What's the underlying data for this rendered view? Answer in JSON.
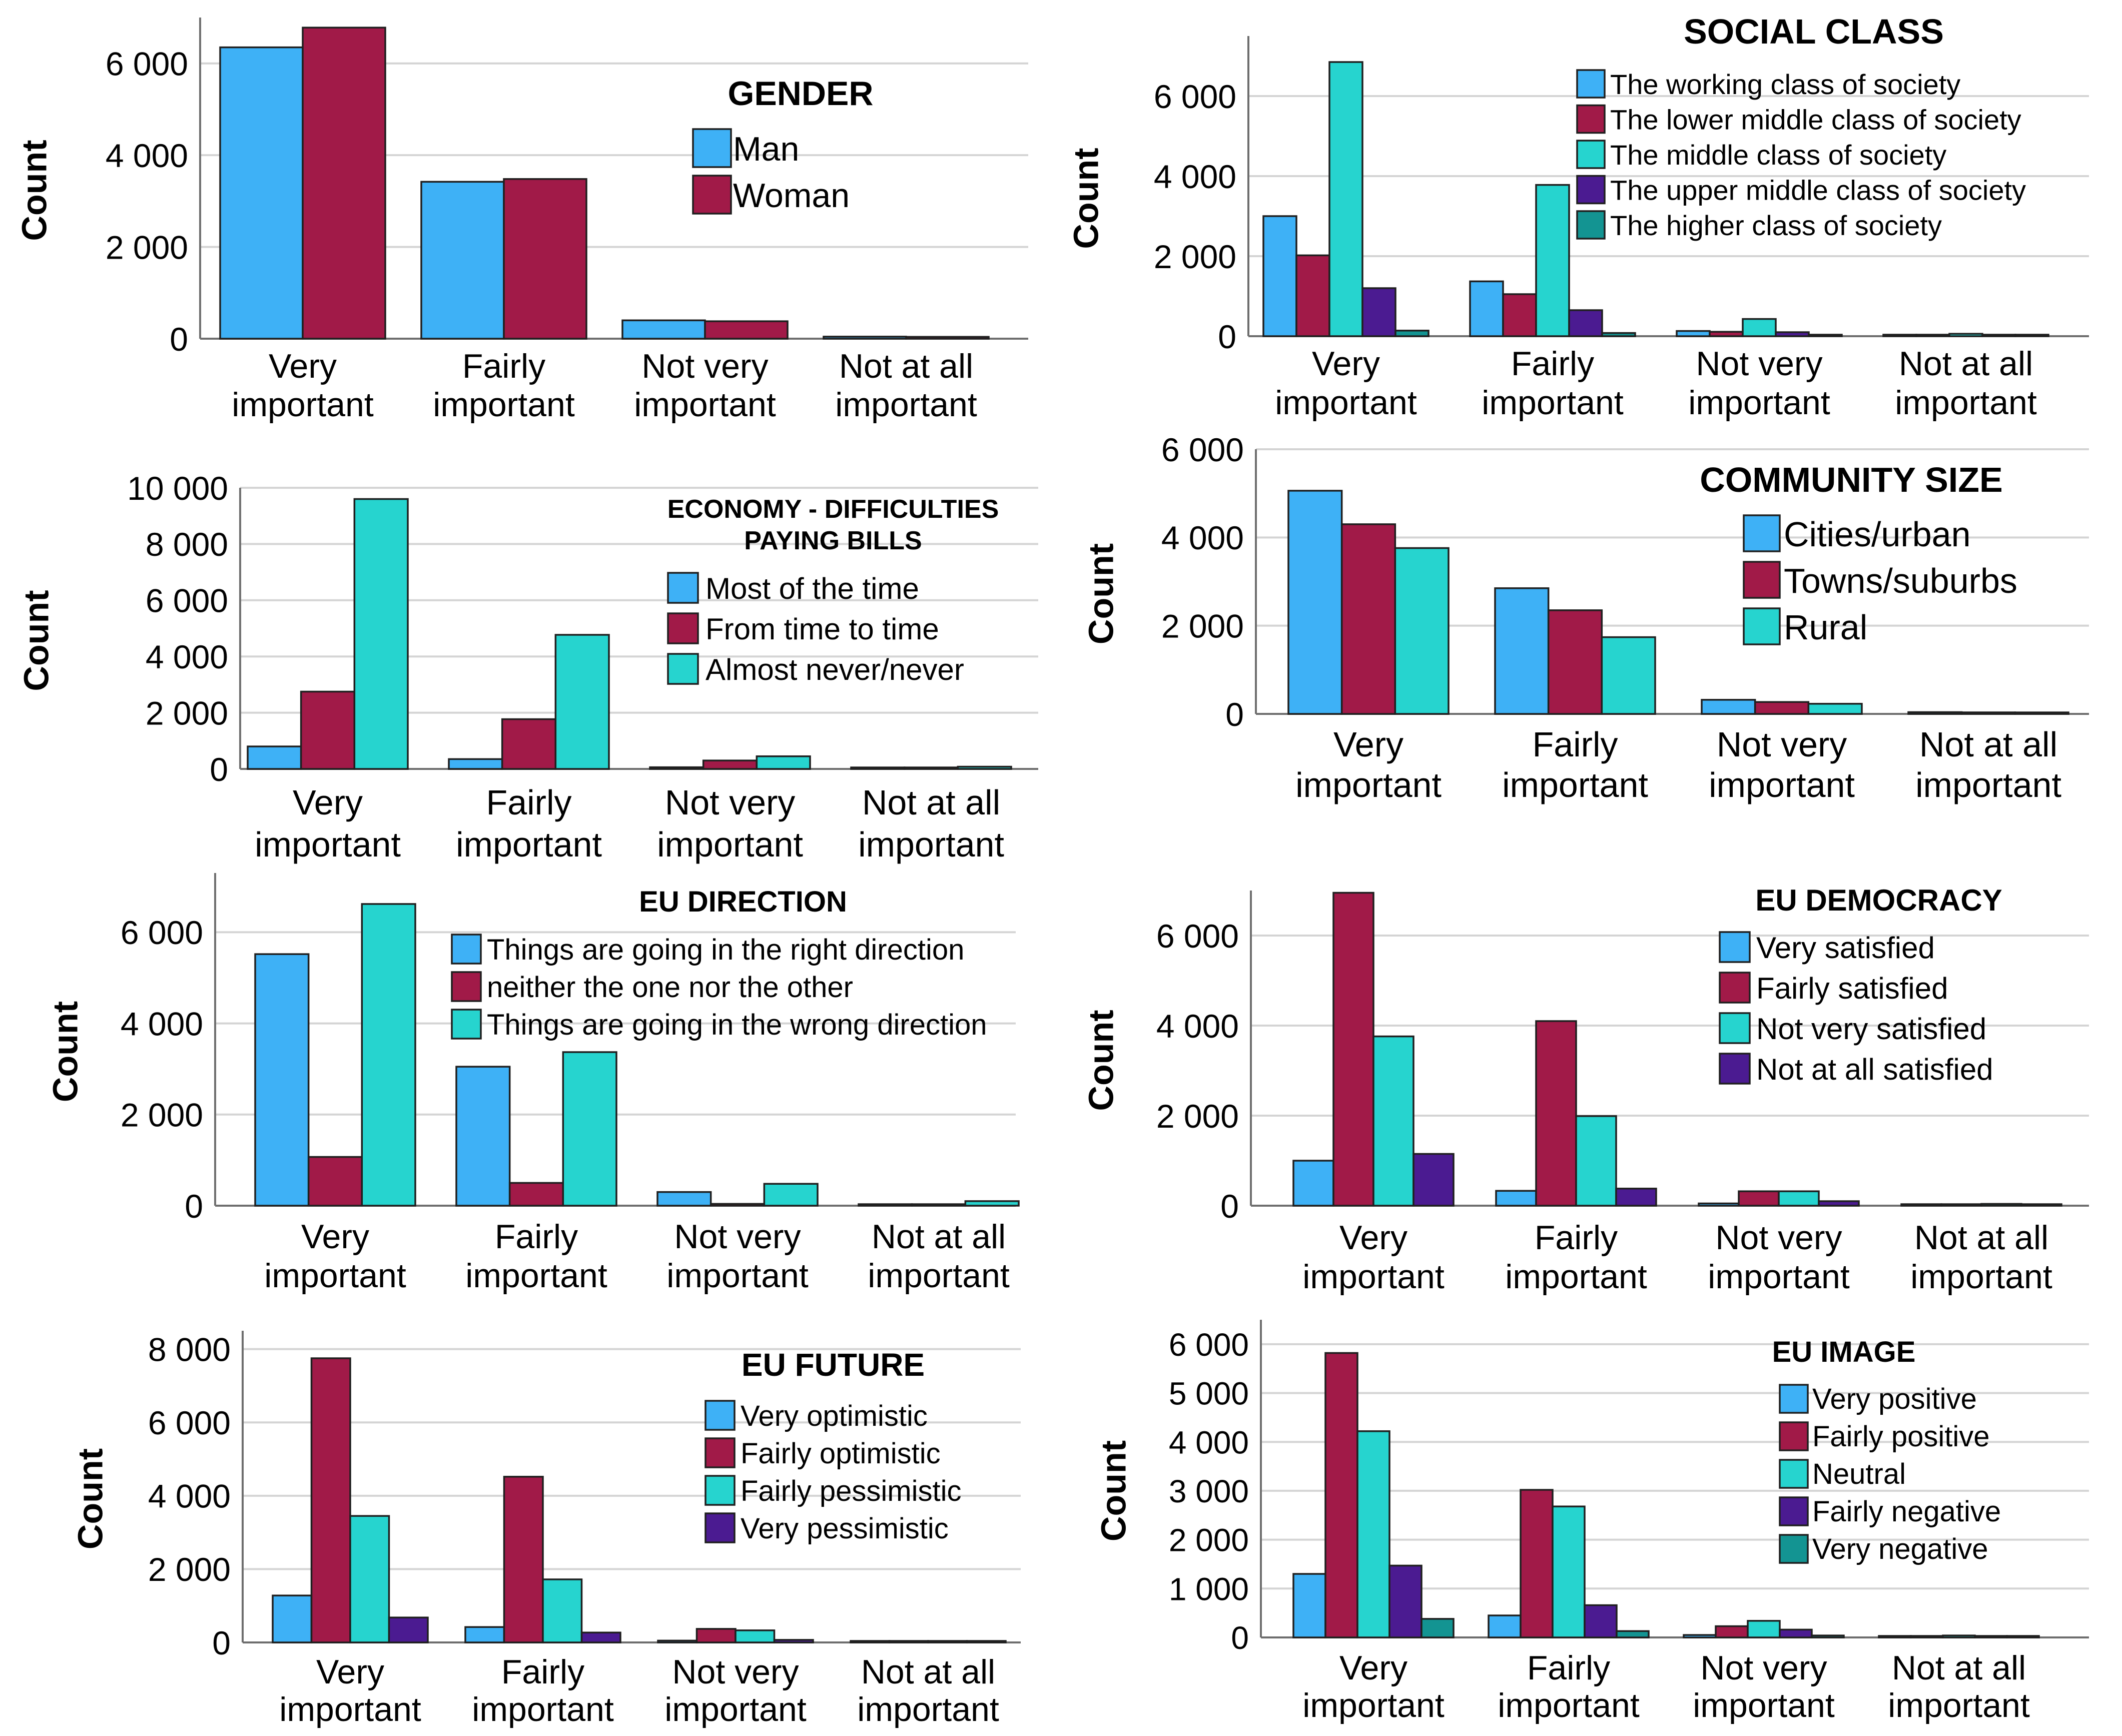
{
  "chart_data": [
    {
      "type": "bar",
      "title": "GENDER",
      "ylabel": "Count",
      "xlabel": "",
      "ylim": [
        0,
        7000
      ],
      "yticks": [
        0,
        2000,
        4000,
        6000
      ],
      "ytick_labels": [
        "0",
        "2 000",
        "4 000",
        "6 000"
      ],
      "categories": [
        "Very important",
        "Fairly important",
        "Not very important",
        "Not at all important"
      ],
      "category_lines": [
        [
          "Very",
          "important"
        ],
        [
          "Fairly",
          "important"
        ],
        [
          "Not very",
          "important"
        ],
        [
          "Not at all",
          "important"
        ]
      ],
      "series": [
        {
          "name": "Man",
          "color": "#3eb1f6",
          "values": [
            6350,
            3420,
            400,
            45
          ]
        },
        {
          "name": "Woman",
          "color": "#a11a48",
          "values": [
            6780,
            3480,
            380,
            40
          ]
        }
      ],
      "legend": "top-right"
    },
    {
      "type": "bar",
      "title": "SOCIAL CLASS",
      "ylabel": "Count",
      "xlabel": "",
      "ylim": [
        0,
        7500
      ],
      "yticks": [
        0,
        2000,
        4000,
        6000
      ],
      "ytick_labels": [
        "0",
        "2 000",
        "4 000",
        "6 000"
      ],
      "categories": [
        "Very important",
        "Fairly important",
        "Not very important",
        "Not at all important"
      ],
      "category_lines": [
        [
          "Very",
          "important"
        ],
        [
          "Fairly",
          "important"
        ],
        [
          "Not very",
          "important"
        ],
        [
          "Not at all",
          "important"
        ]
      ],
      "series": [
        {
          "name": "The working class of society",
          "color": "#3eb1f6",
          "values": [
            3000,
            1370,
            130,
            25
          ]
        },
        {
          "name": "The lower middle class of society",
          "color": "#a11a48",
          "values": [
            2020,
            1050,
            110,
            20
          ]
        },
        {
          "name": "The middle class of society",
          "color": "#26d4cf",
          "values": [
            6850,
            3780,
            430,
            60
          ]
        },
        {
          "name": "The upper middle class of society",
          "color": "#4b1b91",
          "values": [
            1200,
            650,
            100,
            15
          ]
        },
        {
          "name": "The higher class of society",
          "color": "#139492",
          "values": [
            140,
            80,
            20,
            5
          ]
        }
      ],
      "legend": "top-right"
    },
    {
      "type": "bar",
      "title": "ECONOMY - DIFFICULTIES PAYING BILLS",
      "title_lines": [
        "ECONOMY - DIFFICULTIES",
        "PAYING BILLS"
      ],
      "ylabel": "Count",
      "xlabel": "",
      "ylim": [
        0,
        10000
      ],
      "yticks": [
        0,
        2000,
        4000,
        6000,
        8000,
        10000
      ],
      "ytick_labels": [
        "0",
        "2 000",
        "4 000",
        "6 000",
        "8 000",
        "10 000"
      ],
      "categories": [
        "Very important",
        "Fairly important",
        "Not very important",
        "Not at all important"
      ],
      "category_lines": [
        [
          "Very",
          "important"
        ],
        [
          "Fairly",
          "important"
        ],
        [
          "Not very",
          "important"
        ],
        [
          "Not at all",
          "important"
        ]
      ],
      "series": [
        {
          "name": "Most of the time",
          "color": "#3eb1f6",
          "values": [
            800,
            350,
            60,
            15
          ]
        },
        {
          "name": "From time to time",
          "color": "#a11a48",
          "values": [
            2750,
            1770,
            300,
            40
          ]
        },
        {
          "name": "Almost never/never",
          "color": "#26d4cf",
          "values": [
            9600,
            4770,
            450,
            80
          ]
        }
      ],
      "legend": "top-right"
    },
    {
      "type": "bar",
      "title": "COMMUNITY SIZE",
      "ylabel": "Count",
      "xlabel": "",
      "ylim": [
        0,
        6000
      ],
      "yticks": [
        0,
        2000,
        4000,
        6000
      ],
      "ytick_labels": [
        "0",
        "2 000",
        "4 000",
        "6 000"
      ],
      "categories": [
        "Very important",
        "Fairly important",
        "Not very important",
        "Not at all important"
      ],
      "category_lines": [
        [
          "Very",
          "important"
        ],
        [
          "Fairly",
          "important"
        ],
        [
          "Not very",
          "important"
        ],
        [
          "Not at all",
          "important"
        ]
      ],
      "series": [
        {
          "name": "Cities/urban",
          "color": "#3eb1f6",
          "values": [
            5060,
            2850,
            320,
            40
          ]
        },
        {
          "name": "Towns/suburbs",
          "color": "#a11a48",
          "values": [
            4300,
            2350,
            270,
            35
          ]
        },
        {
          "name": "Rural",
          "color": "#26d4cf",
          "values": [
            3760,
            1740,
            230,
            30
          ]
        }
      ],
      "legend": "top-right"
    },
    {
      "type": "bar",
      "title": "EU DIRECTION",
      "ylabel": "Count",
      "xlabel": "",
      "ylim": [
        0,
        7300
      ],
      "yticks": [
        0,
        2000,
        4000,
        6000
      ],
      "ytick_labels": [
        "0",
        "2 000",
        "4 000",
        "6 000"
      ],
      "categories": [
        "Very important",
        "Fairly important",
        "Not very important",
        "Not at all important"
      ],
      "category_lines": [
        [
          "Very",
          "important"
        ],
        [
          "Fairly",
          "important"
        ],
        [
          "Not very",
          "important"
        ],
        [
          "Not at all",
          "important"
        ]
      ],
      "series": [
        {
          "name": "Things are going in the right direction",
          "color": "#3eb1f6",
          "values": [
            5520,
            3050,
            300,
            30
          ]
        },
        {
          "name": "neither the one nor the other",
          "color": "#a11a48",
          "values": [
            1070,
            500,
            40,
            10
          ]
        },
        {
          "name": "Things are going in the wrong direction",
          "color": "#26d4cf",
          "values": [
            6620,
            3370,
            480,
            100
          ]
        }
      ],
      "legend": "top-right"
    },
    {
      "type": "bar",
      "title": "EU DEMOCRACY",
      "ylabel": "Count",
      "xlabel": "",
      "ylim": [
        0,
        7000
      ],
      "yticks": [
        0,
        2000,
        4000,
        6000
      ],
      "ytick_labels": [
        "0",
        "2 000",
        "4 000",
        "6 000"
      ],
      "categories": [
        "Very important",
        "Fairly important",
        "Not very important",
        "Not at all important"
      ],
      "category_lines": [
        [
          "Very",
          "important"
        ],
        [
          "Fairly",
          "important"
        ],
        [
          "Not very",
          "important"
        ],
        [
          "Not at all",
          "important"
        ]
      ],
      "series": [
        {
          "name": "Very satisfied",
          "color": "#3eb1f6",
          "values": [
            1000,
            330,
            50,
            10
          ]
        },
        {
          "name": "Fairly satisfied",
          "color": "#a11a48",
          "values": [
            6950,
            4100,
            320,
            30
          ]
        },
        {
          "name": "Not very satisfied",
          "color": "#26d4cf",
          "values": [
            3760,
            1990,
            320,
            40
          ]
        },
        {
          "name": "Not at all satisfied",
          "color": "#4b1b91",
          "values": [
            1150,
            380,
            100,
            20
          ]
        }
      ],
      "legend": "top-right"
    },
    {
      "type": "bar",
      "title": "EU FUTURE",
      "ylabel": "Count",
      "xlabel": "",
      "ylim": [
        0,
        8500
      ],
      "yticks": [
        0,
        2000,
        4000,
        6000,
        8000
      ],
      "ytick_labels": [
        "0",
        "2 000",
        "4 000",
        "6 000",
        "8 000"
      ],
      "categories": [
        "Very important",
        "Fairly important",
        "Not very important",
        "Not at all important"
      ],
      "category_lines": [
        [
          "Very",
          "important"
        ],
        [
          "Fairly",
          "important"
        ],
        [
          "Not very",
          "important"
        ],
        [
          "Not at all",
          "important"
        ]
      ],
      "series": [
        {
          "name": "Very optimistic",
          "color": "#3eb1f6",
          "values": [
            1280,
            420,
            50,
            10
          ]
        },
        {
          "name": "Fairly optimistic",
          "color": "#a11a48",
          "values": [
            7750,
            4520,
            370,
            40
          ]
        },
        {
          "name": "Fairly pessimistic",
          "color": "#26d4cf",
          "values": [
            3450,
            1720,
            330,
            40
          ]
        },
        {
          "name": "Very pessimistic",
          "color": "#4b1b91",
          "values": [
            680,
            270,
            70,
            15
          ]
        }
      ],
      "legend": "top-right"
    },
    {
      "type": "bar",
      "title": "EU IMAGE",
      "ylabel": "Count",
      "xlabel": "",
      "ylim": [
        0,
        6500
      ],
      "yticks": [
        0,
        1000,
        2000,
        3000,
        4000,
        5000,
        6000
      ],
      "ytick_labels": [
        "0",
        "1 000",
        "2 000",
        "3 000",
        "4 000",
        "5 000",
        "6 000"
      ],
      "categories": [
        "Very important",
        "Fairly important",
        "Not very important",
        "Not at all important"
      ],
      "category_lines": [
        [
          "Very",
          "important"
        ],
        [
          "Fairly",
          "important"
        ],
        [
          "Not very",
          "important"
        ],
        [
          "Not at all",
          "important"
        ]
      ],
      "series": [
        {
          "name": "Very positive",
          "color": "#3eb1f6",
          "values": [
            1300,
            450,
            50,
            10
          ]
        },
        {
          "name": "Fairly positive",
          "color": "#a11a48",
          "values": [
            5820,
            3020,
            230,
            30
          ]
        },
        {
          "name": "Neutral",
          "color": "#26d4cf",
          "values": [
            4220,
            2680,
            340,
            40
          ]
        },
        {
          "name": "Fairly negative",
          "color": "#4b1b91",
          "values": [
            1470,
            660,
            160,
            20
          ]
        },
        {
          "name": "Very negative",
          "color": "#139492",
          "values": [
            380,
            130,
            40,
            10
          ]
        }
      ],
      "legend": "top-right"
    }
  ]
}
